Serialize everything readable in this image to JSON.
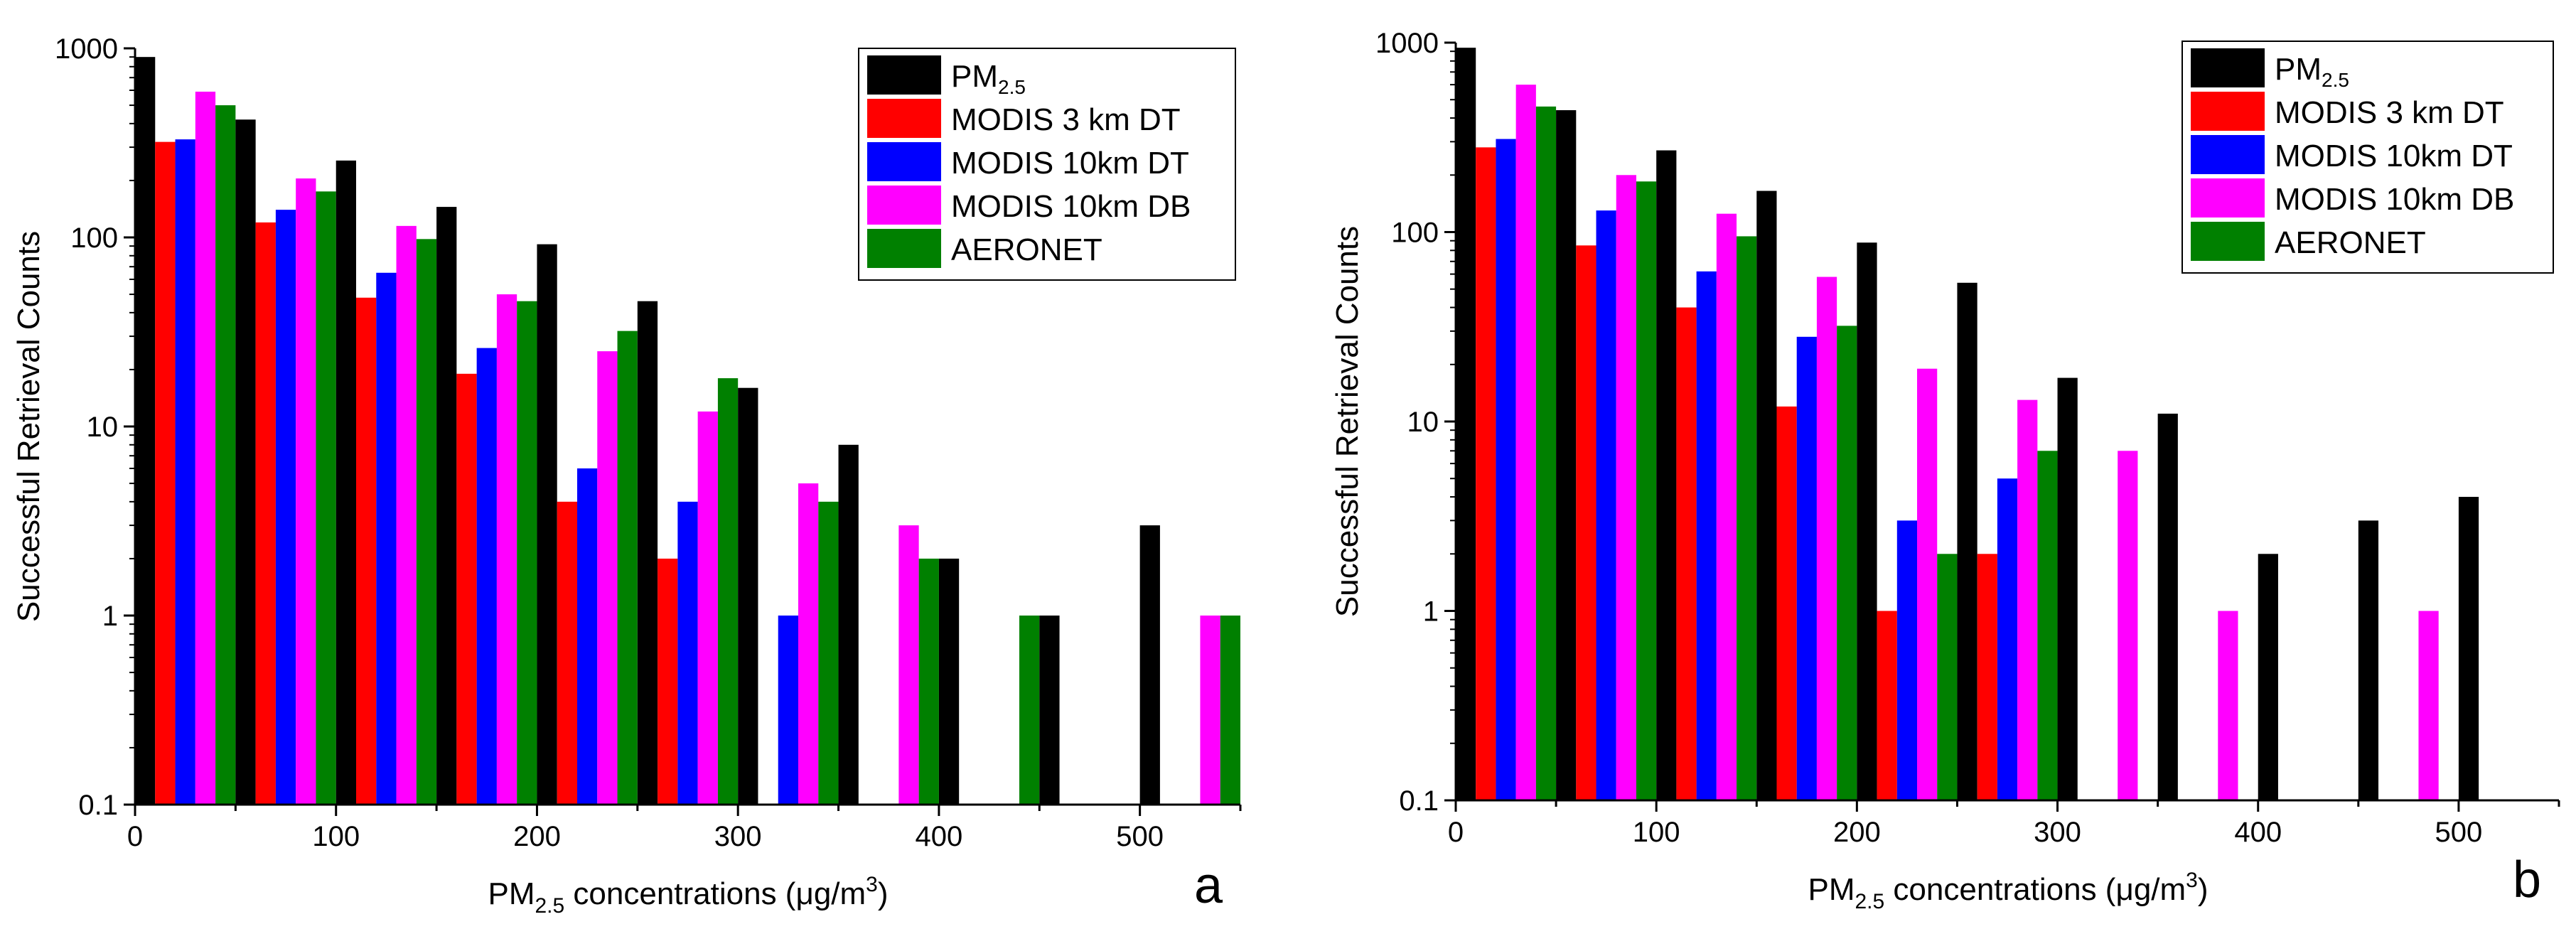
{
  "chart_data": [
    {
      "type": "bar",
      "panel_label": "a",
      "title": "",
      "xlabel": {
        "pre": "PM",
        "sub": "2.5",
        "post": " concentrations (μg/m",
        "sup": "3",
        "end": ")"
      },
      "ylabel": "Successful Retrieval Counts",
      "yscale": "log",
      "ylim": [
        0.1,
        1000
      ],
      "xlim": [
        0,
        550
      ],
      "xticks": [
        0,
        100,
        200,
        300,
        400,
        500
      ],
      "yticks": [
        {
          "value": 0.1,
          "label": "0.1"
        },
        {
          "value": 1,
          "label": "1"
        },
        {
          "value": 10,
          "label": "10"
        },
        {
          "value": 100,
          "label": "100"
        },
        {
          "value": 1000,
          "label": "1000"
        }
      ],
      "group_centers": [
        25,
        75,
        125,
        175,
        225,
        275,
        325,
        375,
        425,
        475,
        525
      ],
      "series": [
        {
          "name": "PM",
          "name_sub": "2.5",
          "color": "#000000",
          "values": [
            900,
            420,
            255,
            145,
            92,
            46,
            16,
            8,
            2,
            1,
            3
          ]
        },
        {
          "name": "MODIS 3 km DT",
          "color": "#ff0000",
          "values": [
            320,
            120,
            48,
            19,
            4,
            2,
            null,
            null,
            null,
            null,
            null
          ]
        },
        {
          "name": "MODIS 10km DT",
          "color": "#0000ff",
          "values": [
            330,
            140,
            65,
            26,
            6,
            4,
            1,
            null,
            null,
            null,
            null
          ]
        },
        {
          "name": "MODIS 10km DB",
          "color": "#ff00ff",
          "values": [
            590,
            205,
            115,
            50,
            25,
            12,
            5,
            3,
            null,
            null,
            1
          ]
        },
        {
          "name": "AERONET",
          "color": "#008000",
          "values": [
            500,
            175,
            98,
            46,
            32,
            18,
            4,
            2,
            1,
            null,
            1
          ]
        }
      ]
    },
    {
      "type": "bar",
      "panel_label": "b",
      "title": "",
      "xlabel": {
        "pre": "PM",
        "sub": "2.5",
        "post": " concentrations (μg/m",
        "sup": "3",
        "end": ")"
      },
      "ylabel": "Successful Retrieval Counts",
      "yscale": "log",
      "ylim": [
        0.1,
        1000
      ],
      "xlim": [
        0,
        550
      ],
      "xticks": [
        0,
        100,
        200,
        300,
        400,
        500
      ],
      "yticks": [
        {
          "value": 0.1,
          "label": "0.1"
        },
        {
          "value": 1,
          "label": "1"
        },
        {
          "value": 10,
          "label": "10"
        },
        {
          "value": 100,
          "label": "100"
        },
        {
          "value": 1000,
          "label": "1000"
        }
      ],
      "group_centers": [
        25,
        75,
        125,
        175,
        225,
        275,
        325,
        375,
        425,
        475,
        525
      ],
      "series": [
        {
          "name": "PM",
          "name_sub": "2.5",
          "color": "#000000",
          "values": [
            940,
            440,
            270,
            165,
            88,
            54,
            17,
            11,
            2,
            3,
            4
          ]
        },
        {
          "name": "MODIS 3 km DT",
          "color": "#ff0000",
          "values": [
            280,
            85,
            40,
            12,
            1,
            2,
            null,
            null,
            null,
            null,
            null
          ]
        },
        {
          "name": "MODIS 10km DT",
          "color": "#0000ff",
          "values": [
            310,
            130,
            62,
            28,
            3,
            5,
            null,
            null,
            null,
            null,
            null
          ]
        },
        {
          "name": "MODIS 10km DB",
          "color": "#ff00ff",
          "values": [
            600,
            200,
            125,
            58,
            19,
            13,
            7,
            1,
            null,
            1,
            null
          ]
        },
        {
          "name": "AERONET",
          "color": "#008000",
          "values": [
            460,
            185,
            95,
            32,
            2,
            7,
            null,
            null,
            null,
            null,
            null
          ]
        }
      ]
    }
  ]
}
